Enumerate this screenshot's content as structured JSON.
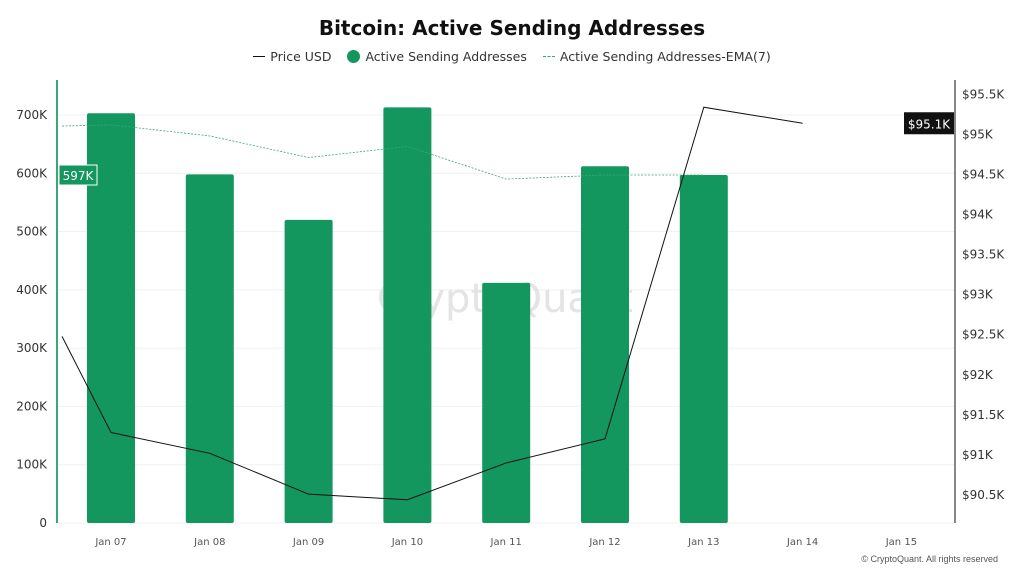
{
  "chart_data": {
    "type": "bar",
    "title": "Bitcoin: Active Sending Addresses",
    "legend": [
      {
        "name": "Price USD",
        "color": "#111111"
      },
      {
        "name": "Active Sending Addresses",
        "color": "#13975f"
      },
      {
        "name": "Active Sending Addresses-EMA(7)",
        "color": "#3aa874"
      }
    ],
    "legend_position": "top-center",
    "categories": [
      "Jan 07",
      "Jan 08",
      "Jan 09",
      "Jan 10",
      "Jan 11",
      "Jan 12",
      "Jan 13",
      "Jan 14",
      "Jan 15"
    ],
    "left_axis": {
      "ticks": [
        "0",
        "100K",
        "200K",
        "300K",
        "400K",
        "500K",
        "600K",
        "700K"
      ],
      "tick_values": [
        0,
        100000,
        200000,
        300000,
        400000,
        500000,
        600000,
        700000
      ],
      "range": [
        0,
        760000
      ]
    },
    "right_axis": {
      "ticks": [
        "$90.5K",
        "$91K",
        "$91.5K",
        "$92K",
        "$92.5K",
        "$93K",
        "$93.5K",
        "$94K",
        "$94.5K",
        "$95K",
        "$95.5K"
      ],
      "tick_values": [
        90500,
        91000,
        91500,
        92000,
        92500,
        93000,
        93500,
        94000,
        94500,
        95000,
        95500
      ],
      "range": [
        90150,
        95680
      ]
    },
    "series": [
      {
        "name": "Active Sending Addresses",
        "type": "bar",
        "values": [
          703000,
          598000,
          520000,
          713000,
          412000,
          612000,
          597000,
          null,
          null
        ]
      },
      {
        "name": "Active Sending Addresses-EMA(7)",
        "type": "line",
        "x": [
          -0.5,
          0,
          1,
          2,
          3,
          4,
          5,
          6
        ],
        "values": [
          681000,
          683000,
          664000,
          627000,
          646000,
          590000,
          597000,
          597000
        ]
      },
      {
        "name": "Price USD",
        "type": "line",
        "x": [
          -0.5,
          0,
          1,
          2,
          3,
          4,
          5,
          6,
          7
        ],
        "values": [
          92480,
          91280,
          91020,
          90510,
          90440,
          90900,
          91200,
          95340,
          95140
        ]
      }
    ],
    "current_labels": {
      "left": "597K",
      "right": "$95.1K"
    },
    "watermark": "CryptoQuant",
    "credit": "© CryptoQuant. All rights reserved"
  }
}
